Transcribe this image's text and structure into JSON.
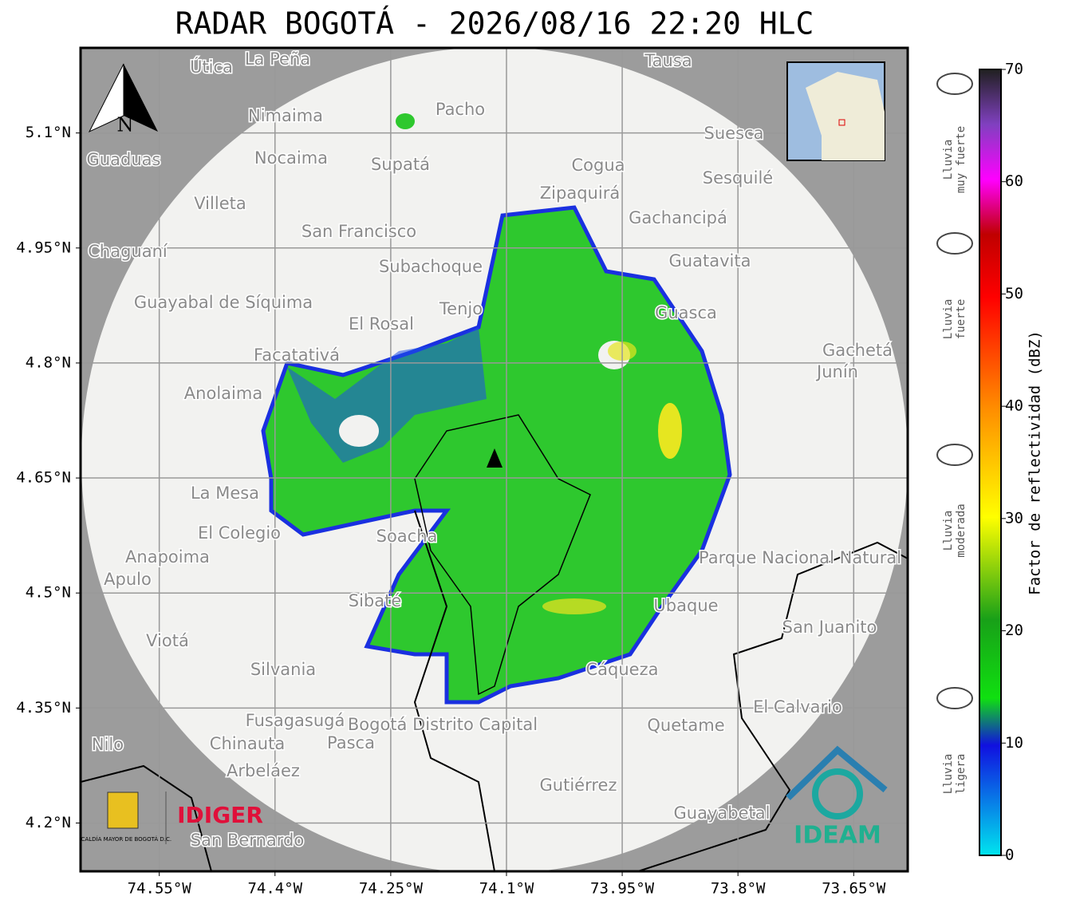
{
  "chart_data": {
    "type": "map",
    "title": "RADAR BOGOTÁ - 2026/08/16 22:20 HLC",
    "xlim": [
      -74.652,
      -73.58
    ],
    "ylim": [
      4.137,
      5.211
    ],
    "xticks": [
      {
        "value": -74.55,
        "label": "74.55°W"
      },
      {
        "value": -74.4,
        "label": "74.4°W"
      },
      {
        "value": -74.25,
        "label": "74.25°W"
      },
      {
        "value": -74.1,
        "label": "74.1°W"
      },
      {
        "value": -73.95,
        "label": "73.95°W"
      },
      {
        "value": -73.8,
        "label": "73.8°W"
      },
      {
        "value": -73.65,
        "label": "73.65°W"
      }
    ],
    "yticks": [
      {
        "value": 4.2,
        "label": "4.2°N"
      },
      {
        "value": 4.35,
        "label": "4.35°N"
      },
      {
        "value": 4.5,
        "label": "4.5°N"
      },
      {
        "value": 4.65,
        "label": "4.65°N"
      },
      {
        "value": 4.8,
        "label": "4.8°N"
      },
      {
        "value": 4.95,
        "label": "4.95°N"
      },
      {
        "value": 5.1,
        "label": "5.1°N"
      }
    ],
    "grid": true,
    "colorbar": {
      "label": "Factor de reflectividad (dBZ)",
      "lim": [
        0,
        70
      ],
      "ticks": [
        0,
        10,
        20,
        30,
        40,
        50,
        60,
        70
      ]
    },
    "rain_levels": [
      [
        "Lluvia",
        "muy fuerte"
      ],
      [
        "Lluvia",
        "fuerte"
      ],
      [
        "Lluvia",
        "moderada"
      ],
      [
        "Lluvia",
        "ligera"
      ]
    ],
    "north": "N",
    "logos": {
      "alcaldia": "ALCALDÍA MAYOR DE BOGOTÁ D.C.",
      "idiger": "IDIGER",
      "ideam": "IDEAM"
    },
    "places": [
      "La Peña",
      "Útica",
      "Tausa",
      "Pacho",
      "Nimaima",
      "Nocaima",
      "Supatá",
      "Guaduas",
      "Cogua",
      "Suesca",
      "Sesquilé",
      "Villeta",
      "Zipaquirá",
      "Gachancipá",
      "San Francisco",
      "Chaguaní",
      "Guatavita",
      "Subachoque",
      "Tenjo",
      "El Rosal",
      "Guayabal de Síquima",
      "Guasca",
      "Facatativá",
      "Gachetá",
      "Junín",
      "Anolaima",
      "La Mesa",
      "El Colegio",
      "Soacha",
      "Anapoima",
      "Apulo",
      "Sibaté",
      "Parque Nacional Natural Chingaza",
      "Ubaque",
      "San Juanito",
      "Viotá",
      "Silvania",
      "Cáqueza",
      "Fusagasugá",
      "Bogotá Distrito Capital",
      "El Calvario",
      "Quetame",
      "Chinauta",
      "Pasca",
      "Nilo",
      "Arbeláez",
      "Gutiérrez",
      "Guayabetal",
      "San Bernardo"
    ]
  }
}
